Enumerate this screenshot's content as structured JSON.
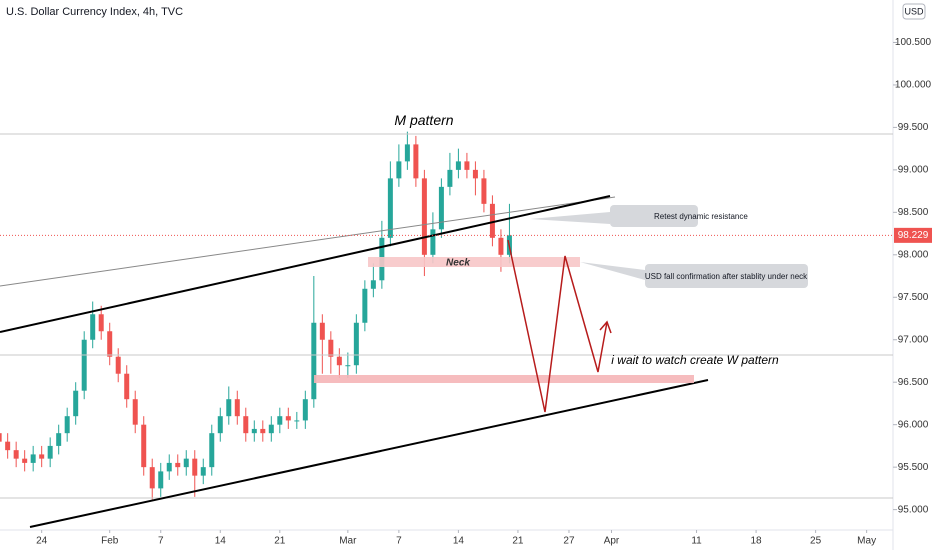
{
  "chart_data": {
    "type": "candlestick",
    "title": "U.S. Dollar Currency Index, 4h, TVC",
    "currency": "USD",
    "up_color": "#26a69a",
    "down_color": "#ef5350",
    "x": [
      -5,
      -4,
      -3,
      -2,
      -1,
      0,
      1,
      2,
      3,
      4,
      5,
      6,
      7,
      8,
      9,
      10,
      11,
      12,
      13,
      14,
      15,
      16,
      17,
      18,
      19,
      20,
      21,
      22,
      23,
      24,
      25,
      26,
      27,
      28,
      29,
      30,
      31,
      32,
      33,
      34,
      35,
      36,
      37,
      38,
      39,
      40,
      41,
      42,
      43,
      44,
      45,
      46,
      47,
      48,
      49,
      50,
      51,
      52,
      53,
      54,
      55
    ],
    "open": [
      95.9,
      95.8,
      95.7,
      95.6,
      95.55,
      95.65,
      95.6,
      95.75,
      95.9,
      96.1,
      96.4,
      97.0,
      97.3,
      97.1,
      96.8,
      96.6,
      96.3,
      96.0,
      95.5,
      95.25,
      95.45,
      95.55,
      95.5,
      95.6,
      95.4,
      95.5,
      95.9,
      96.1,
      96.3,
      96.1,
      95.9,
      95.95,
      95.9,
      96.0,
      96.1,
      96.05,
      96.05,
      96.3,
      97.2,
      97.0,
      96.8,
      96.7,
      96.7,
      97.2,
      97.6,
      97.7,
      98.2,
      98.9,
      99.1,
      99.3,
      98.9,
      98.0,
      98.3,
      98.8,
      99.0,
      99.1,
      99.0,
      98.9,
      98.6,
      98.2,
      98.0
    ],
    "high": [
      96.0,
      95.9,
      95.8,
      95.7,
      95.75,
      95.75,
      95.85,
      96.0,
      96.2,
      96.5,
      97.1,
      97.45,
      97.4,
      97.2,
      96.9,
      96.7,
      96.4,
      96.1,
      95.6,
      95.55,
      95.65,
      95.65,
      95.7,
      95.7,
      95.6,
      96.0,
      96.2,
      96.45,
      96.4,
      96.2,
      96.05,
      96.05,
      96.1,
      96.2,
      96.2,
      96.15,
      96.4,
      97.75,
      97.3,
      97.1,
      96.9,
      96.85,
      97.3,
      97.7,
      97.9,
      98.4,
      99.1,
      99.3,
      99.45,
      99.4,
      99.0,
      98.5,
      98.9,
      99.2,
      99.25,
      99.2,
      99.1,
      99.0,
      98.7,
      98.3,
      98.6
    ],
    "low": [
      95.7,
      95.6,
      95.5,
      95.45,
      95.45,
      95.5,
      95.5,
      95.65,
      95.8,
      96.0,
      96.3,
      96.9,
      97.0,
      96.7,
      96.5,
      96.2,
      95.9,
      95.4,
      95.12,
      95.15,
      95.35,
      95.4,
      95.4,
      95.15,
      95.3,
      95.4,
      95.8,
      96.0,
      96.0,
      95.8,
      95.8,
      95.8,
      95.8,
      95.9,
      95.95,
      95.95,
      95.95,
      96.2,
      96.6,
      96.6,
      96.55,
      96.55,
      96.6,
      97.1,
      97.5,
      97.6,
      98.1,
      98.8,
      99.0,
      98.8,
      97.75,
      97.9,
      98.2,
      98.7,
      98.9,
      98.9,
      98.7,
      98.5,
      98.1,
      97.8,
      97.9
    ],
    "close": [
      95.8,
      95.7,
      95.6,
      95.55,
      95.65,
      95.6,
      95.75,
      95.9,
      96.1,
      96.4,
      97.0,
      97.3,
      97.1,
      96.8,
      96.6,
      96.3,
      96.0,
      95.5,
      95.25,
      95.45,
      95.55,
      95.5,
      95.6,
      95.4,
      95.5,
      95.9,
      96.1,
      96.3,
      96.1,
      95.9,
      95.95,
      95.9,
      96.0,
      96.1,
      96.05,
      96.05,
      96.3,
      97.2,
      97.0,
      96.8,
      96.7,
      96.7,
      97.2,
      97.6,
      97.7,
      98.2,
      98.9,
      99.1,
      99.3,
      98.9,
      98.0,
      98.3,
      98.8,
      99.0,
      99.1,
      99.0,
      98.9,
      98.6,
      98.2,
      98.0,
      98.229
    ],
    "last_price": {
      "value": 98.229,
      "label": "98.229"
    },
    "xlim": [
      -4.9,
      100.1
    ],
    "xticks": [
      {
        "value": 0,
        "label": "24"
      },
      {
        "value": 8,
        "label": "Feb"
      },
      {
        "value": 14,
        "label": "7"
      },
      {
        "value": 21,
        "label": "14"
      },
      {
        "value": 28,
        "label": "21"
      },
      {
        "value": 36,
        "label": "Mar"
      },
      {
        "value": 42,
        "label": "7"
      },
      {
        "value": 49,
        "label": "14"
      },
      {
        "value": 56,
        "label": "21"
      },
      {
        "value": 62,
        "label": "27"
      },
      {
        "value": 67,
        "label": "Apr"
      },
      {
        "value": 77,
        "label": "11"
      },
      {
        "value": 84,
        "label": "18"
      },
      {
        "value": 91,
        "label": "25"
      },
      {
        "value": 97,
        "label": "May"
      }
    ],
    "ylim": [
      94.76,
      101.0
    ],
    "yticks": [
      {
        "value": 95,
        "label": "95.000"
      },
      {
        "value": 95.5,
        "label": "95.500"
      },
      {
        "value": 96,
        "label": "96.000"
      },
      {
        "value": 96.5,
        "label": "96.500"
      },
      {
        "value": 97,
        "label": "97.000"
      },
      {
        "value": 97.5,
        "label": "97.500"
      },
      {
        "value": 98,
        "label": "98.000"
      },
      {
        "value": 98.5,
        "label": "98.500"
      },
      {
        "value": 99,
        "label": "99.000"
      },
      {
        "value": 99.5,
        "label": "99.500"
      },
      {
        "value": 100,
        "label": "100.000"
      },
      {
        "value": 100.5,
        "label": "100.500"
      }
    ],
    "annotations": [
      "M pattern",
      "Retest dynamic resistance",
      "Neck",
      "USD fall confirmation after stablity under neck",
      "i wait to watch create W pattern"
    ]
  }
}
